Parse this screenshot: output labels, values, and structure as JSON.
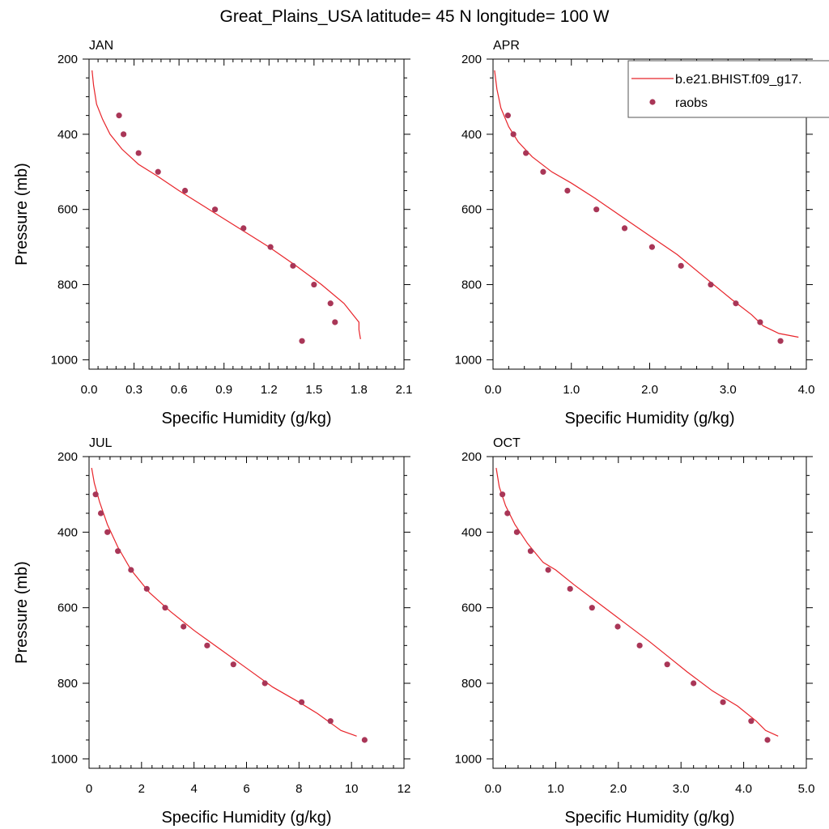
{
  "figure": {
    "title": "Great_Plains_USA  latitude= 45 N longitude= 100 W"
  },
  "legend": {
    "line_label": "b.e21.BHIST.f09_g17.",
    "marker_label": "raobs",
    "placement": "top-right of APR panel"
  },
  "colors": {
    "model_line": "#e8242a",
    "obs_marker": "#a93657",
    "axis": "#000000"
  },
  "chart_data": [
    {
      "type": "line",
      "panel_label": "JAN",
      "xlabel": "Specific Humidity (g/kg)",
      "ylabel": "Pressure (mb)",
      "xlim": [
        0,
        2.1
      ],
      "ylim": [
        1025,
        200
      ],
      "y_reversed": true,
      "xticks": [
        0,
        0.3,
        0.6,
        0.9,
        1.2,
        1.5,
        1.8,
        2.1
      ],
      "xtick_labels": [
        "0.0",
        "0.3",
        "0.6",
        "0.9",
        "1.2",
        "1.5",
        "1.8",
        "2.1"
      ],
      "yticks": [
        200,
        400,
        600,
        800,
        1000
      ],
      "ytick_labels": [
        "200",
        "400",
        "600",
        "800",
        "1000"
      ],
      "series": [
        {
          "name": "b.e21.BHIST.f09_g17.",
          "kind": "line",
          "x": [
            0.02,
            0.03,
            0.05,
            0.09,
            0.14,
            0.22,
            0.33,
            0.45,
            0.6,
            0.8,
            1.0,
            1.2,
            1.38,
            1.55,
            1.7,
            1.76,
            1.8,
            1.8,
            1.81
          ],
          "y": [
            230,
            270,
            320,
            360,
            400,
            440,
            480,
            510,
            550,
            600,
            650,
            700,
            750,
            800,
            850,
            880,
            900,
            920,
            945
          ]
        },
        {
          "name": "raobs",
          "kind": "scatter",
          "x": [
            0.2,
            0.23,
            0.33,
            0.46,
            0.64,
            0.84,
            1.03,
            1.21,
            1.36,
            1.5,
            1.61,
            1.64,
            1.42
          ],
          "y": [
            350,
            400,
            450,
            500,
            550,
            600,
            650,
            700,
            750,
            800,
            850,
            900,
            950
          ]
        }
      ]
    },
    {
      "type": "line",
      "panel_label": "APR",
      "xlabel": "Specific Humidity (g/kg)",
      "ylabel": "",
      "xlim": [
        0,
        4.0
      ],
      "ylim": [
        1025,
        200
      ],
      "y_reversed": true,
      "xticks": [
        0,
        1,
        2,
        3,
        4
      ],
      "xtick_labels": [
        "0.0",
        "1.0",
        "2.0",
        "3.0",
        "4.0"
      ],
      "yticks": [
        200,
        400,
        600,
        800,
        1000
      ],
      "ytick_labels": [
        "200",
        "400",
        "600",
        "800",
        "1000"
      ],
      "series": [
        {
          "name": "b.e21.BHIST.f09_g17.",
          "kind": "line",
          "x": [
            0.02,
            0.05,
            0.1,
            0.2,
            0.32,
            0.5,
            0.75,
            1.0,
            1.3,
            1.65,
            2.0,
            2.35,
            2.7,
            3.05,
            3.3,
            3.45,
            3.65,
            3.9
          ],
          "y": [
            230,
            280,
            330,
            380,
            420,
            460,
            500,
            530,
            570,
            620,
            670,
            720,
            780,
            840,
            880,
            910,
            930,
            940
          ]
        },
        {
          "name": "raobs",
          "kind": "scatter",
          "x": [
            0.19,
            0.26,
            0.42,
            0.64,
            0.95,
            1.32,
            1.68,
            2.03,
            2.4,
            2.78,
            3.1,
            3.41,
            3.67
          ],
          "y": [
            350,
            400,
            450,
            500,
            550,
            600,
            650,
            700,
            750,
            800,
            850,
            900,
            950
          ]
        }
      ]
    },
    {
      "type": "line",
      "panel_label": "JUL",
      "xlabel": "Specific Humidity (g/kg)",
      "ylabel": "Pressure (mb)",
      "xlim": [
        0,
        12
      ],
      "ylim": [
        1025,
        200
      ],
      "y_reversed": true,
      "xticks": [
        0,
        2,
        4,
        6,
        8,
        10,
        12
      ],
      "xtick_labels": [
        "0",
        "2",
        "4",
        "6",
        "8",
        "10",
        "12"
      ],
      "yticks": [
        200,
        400,
        600,
        800,
        1000
      ],
      "ytick_labels": [
        "200",
        "400",
        "600",
        "800",
        "1000"
      ],
      "series": [
        {
          "name": "b.e21.BHIST.f09_g17.",
          "kind": "line",
          "x": [
            0.1,
            0.2,
            0.4,
            0.7,
            1.1,
            1.6,
            2.3,
            3.1,
            4.0,
            5.0,
            6.0,
            7.0,
            8.0,
            8.7,
            9.3,
            9.6,
            10.2
          ],
          "y": [
            230,
            270,
            320,
            380,
            440,
            500,
            560,
            610,
            660,
            710,
            760,
            810,
            850,
            880,
            910,
            925,
            940
          ]
        },
        {
          "name": "raobs",
          "kind": "scatter",
          "x": [
            0.25,
            0.45,
            0.7,
            1.1,
            1.6,
            2.2,
            2.9,
            3.6,
            4.5,
            5.5,
            6.7,
            8.1,
            9.2,
            10.5
          ],
          "y": [
            300,
            350,
            400,
            450,
            500,
            550,
            600,
            650,
            700,
            750,
            800,
            850,
            900,
            950
          ]
        }
      ]
    },
    {
      "type": "line",
      "panel_label": "OCT",
      "xlabel": "Specific Humidity (g/kg)",
      "ylabel": "",
      "xlim": [
        0,
        5.0
      ],
      "ylim": [
        1025,
        200
      ],
      "y_reversed": true,
      "xticks": [
        0,
        1,
        2,
        3,
        4,
        5
      ],
      "xtick_labels": [
        "0.0",
        "1.0",
        "2.0",
        "3.0",
        "4.0",
        "5.0"
      ],
      "yticks": [
        200,
        400,
        600,
        800,
        1000
      ],
      "ytick_labels": [
        "200",
        "400",
        "600",
        "800",
        "1000"
      ],
      "series": [
        {
          "name": "b.e21.BHIST.f09_g17.",
          "kind": "line",
          "x": [
            0.05,
            0.1,
            0.2,
            0.35,
            0.55,
            0.8,
            1.0,
            1.3,
            1.7,
            2.1,
            2.5,
            2.8,
            3.1,
            3.5,
            3.9,
            4.2,
            4.35,
            4.55
          ],
          "y": [
            230,
            280,
            330,
            380,
            430,
            480,
            500,
            540,
            590,
            640,
            690,
            730,
            770,
            820,
            860,
            900,
            925,
            940
          ]
        },
        {
          "name": "raobs",
          "kind": "scatter",
          "x": [
            0.15,
            0.23,
            0.38,
            0.6,
            0.88,
            1.23,
            1.58,
            1.99,
            2.34,
            2.78,
            3.2,
            3.67,
            4.12,
            4.38
          ],
          "y": [
            300,
            350,
            400,
            450,
            500,
            550,
            600,
            650,
            700,
            750,
            800,
            850,
            900,
            950
          ]
        }
      ]
    }
  ]
}
